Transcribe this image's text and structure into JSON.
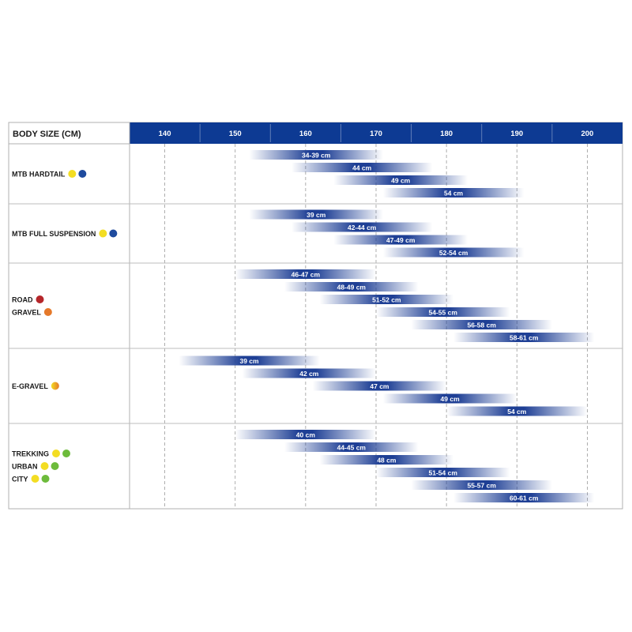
{
  "chart_data": {
    "type": "bar",
    "title": "",
    "header_label": "BODY SIZE (CM)",
    "x_ticks": [
      140,
      150,
      160,
      170,
      180,
      190,
      200
    ],
    "xlim": [
      135,
      205
    ],
    "grid": true,
    "colors": {
      "header": "#0d3a93",
      "bar": "#1e3f95",
      "yellow": "#f3dd23",
      "blue": "#1f4b9e",
      "red": "#b5262a",
      "orange": "#e5792a",
      "green": "#6dbb3b"
    },
    "groups": [
      {
        "name": "mtb-hardtail",
        "labels": [
          {
            "text": "MTB HARDTAIL",
            "dots": [
              "yellow",
              "blue"
            ]
          }
        ],
        "bars": [
          {
            "label": "34-39 cm",
            "start": 152,
            "end": 171
          },
          {
            "label": "44 cm",
            "start": 158,
            "end": 178
          },
          {
            "label": "49 cm",
            "start": 164,
            "end": 183
          },
          {
            "label": "54 cm",
            "start": 171,
            "end": 191
          }
        ]
      },
      {
        "name": "mtb-full-suspension",
        "labels": [
          {
            "text": "MTB FULL SUSPENSION",
            "dots": [
              "yellow",
              "blue"
            ]
          }
        ],
        "bars": [
          {
            "label": "39 cm",
            "start": 152,
            "end": 171
          },
          {
            "label": "42-44 cm",
            "start": 158,
            "end": 178
          },
          {
            "label": "47-49 cm",
            "start": 164,
            "end": 183
          },
          {
            "label": "52-54 cm",
            "start": 171,
            "end": 191
          }
        ]
      },
      {
        "name": "road-gravel",
        "labels": [
          {
            "text": "ROAD",
            "dots": [
              "red"
            ]
          },
          {
            "text": "GRAVEL",
            "dots": [
              "orange"
            ]
          }
        ],
        "bars": [
          {
            "label": "46-47 cm",
            "start": 150,
            "end": 170
          },
          {
            "label": "48-49 cm",
            "start": 157,
            "end": 176
          },
          {
            "label": "51-52 cm",
            "start": 162,
            "end": 181
          },
          {
            "label": "54-55 cm",
            "start": 170,
            "end": 189
          },
          {
            "label": "56-58 cm",
            "start": 175,
            "end": 195
          },
          {
            "label": "58-61 cm",
            "start": 181,
            "end": 201
          }
        ]
      },
      {
        "name": "e-gravel",
        "labels": [
          {
            "text": "E-GRAVEL",
            "dots": [
              "yellow-orange"
            ]
          }
        ],
        "bars": [
          {
            "label": "39 cm",
            "start": 142,
            "end": 162
          },
          {
            "label": "42 cm",
            "start": 151,
            "end": 170
          },
          {
            "label": "47 cm",
            "start": 161,
            "end": 180
          },
          {
            "label": "49 cm",
            "start": 171,
            "end": 190
          },
          {
            "label": "54 cm",
            "start": 180,
            "end": 200
          }
        ]
      },
      {
        "name": "trekking-urban-city",
        "labels": [
          {
            "text": "TREKKING",
            "dots": [
              "yellow",
              "green"
            ]
          },
          {
            "text": "URBAN",
            "dots": [
              "yellow",
              "green"
            ]
          },
          {
            "text": "CITY",
            "dots": [
              "yellow",
              "green"
            ]
          }
        ],
        "bars": [
          {
            "label": "40 cm",
            "start": 150,
            "end": 170
          },
          {
            "label": "44-45 cm",
            "start": 157,
            "end": 176
          },
          {
            "label": "48 cm",
            "start": 162,
            "end": 181
          },
          {
            "label": "51-54 cm",
            "start": 170,
            "end": 189
          },
          {
            "label": "55-57 cm",
            "start": 175,
            "end": 195
          },
          {
            "label": "60-61 cm",
            "start": 181,
            "end": 201
          }
        ]
      }
    ]
  }
}
